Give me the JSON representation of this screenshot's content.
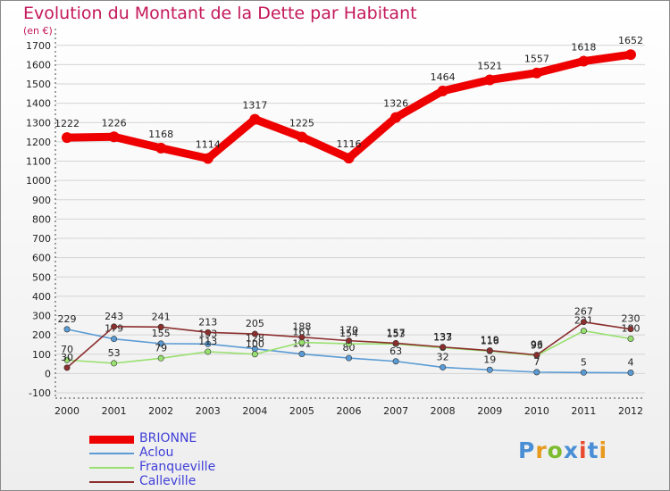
{
  "title": "Evolution du Montant de la Dette par Habitant",
  "unit": "(en €)",
  "logo": {
    "text": "Proxiti",
    "colors": [
      "#4a8fd6",
      "#e89a1e",
      "#7dbb2f",
      "#4a8fd6",
      "#e84a32",
      "#4a8fd6",
      "#e89a1e"
    ]
  },
  "chart_data": {
    "type": "line",
    "title": "Evolution du Montant de la Dette par Habitant",
    "ylabel": "(en €)",
    "ylim": [
      -100,
      1750
    ],
    "yticks": [
      -100,
      0,
      100,
      200,
      300,
      400,
      500,
      600,
      700,
      800,
      900,
      1000,
      1100,
      1200,
      1300,
      1400,
      1500,
      1600,
      1700
    ],
    "categories": [
      "2000",
      "2001",
      "2002",
      "2003",
      "2004",
      "2005",
      "2006",
      "2007",
      "2008",
      "2009",
      "2010",
      "2011",
      "2012"
    ],
    "series": [
      {
        "name": "BRIONNE",
        "color": "#ee0000",
        "text_color": "#3f3fd8",
        "values": [
          1222,
          1226,
          1168,
          1114,
          1317,
          1225,
          1116,
          1326,
          1464,
          1521,
          1557,
          1618,
          1652
        ]
      },
      {
        "name": "Aclou",
        "color": "#5a9bd5",
        "text_color": "#3f3fd8",
        "values": [
          229,
          179,
          155,
          153,
          128,
          101,
          80,
          63,
          32,
          19,
          7,
          5,
          4
        ]
      },
      {
        "name": "Franqueville",
        "color": "#99e070",
        "text_color": "#3f3fd8",
        "values": [
          70,
          53,
          79,
          113,
          100,
          161,
          154,
          153,
          133,
          116,
          93,
          221,
          180
        ]
      },
      {
        "name": "Calleville",
        "color": "#8b2e2e",
        "text_color": "#3f3fd8",
        "values": [
          30,
          243,
          241,
          213,
          205,
          188,
          170,
          157,
          137,
          119,
          96,
          267,
          230
        ]
      }
    ]
  }
}
